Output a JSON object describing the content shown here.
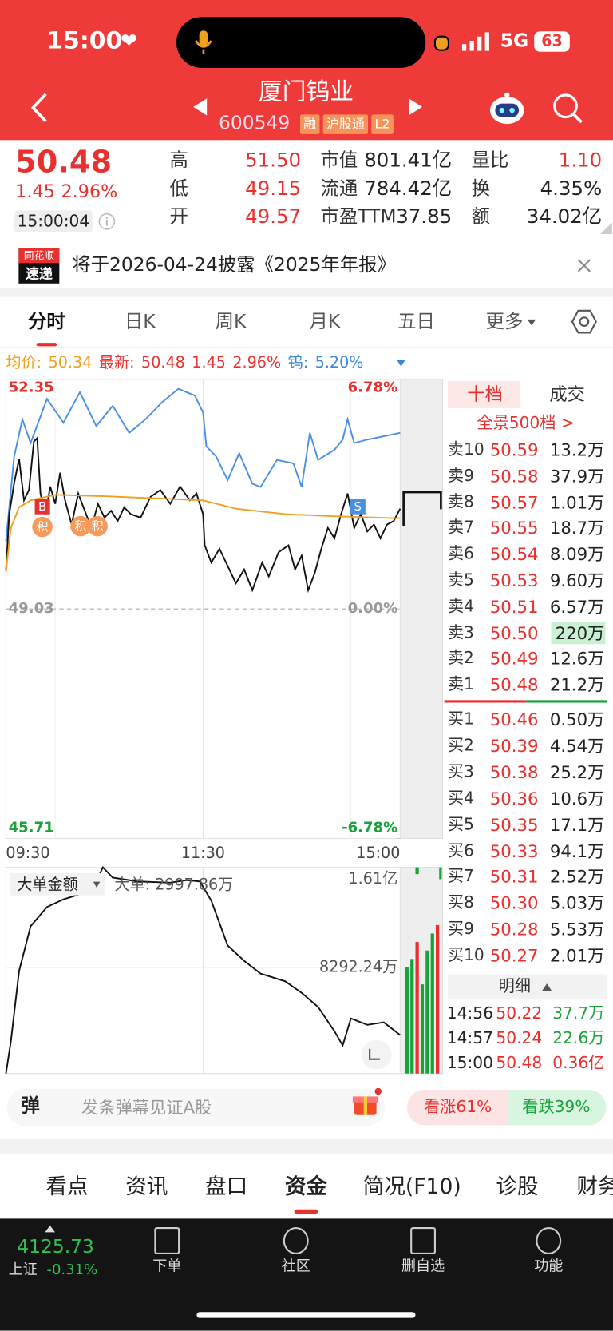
{
  "status_bar": {
    "time": "15:00",
    "network": "5G",
    "battery": "63"
  },
  "header": {
    "title": "厦门钨业",
    "code": "600549",
    "tags": [
      "融",
      "沪股通",
      "L2"
    ]
  },
  "quote": {
    "price": "50.48",
    "change": "1.45",
    "change_pct": "2.96%",
    "time": "15:00:04",
    "stats": [
      {
        "label": "高",
        "value": "51.50"
      },
      {
        "label": "低",
        "value": "49.15"
      },
      {
        "label": "开",
        "value": "49.57"
      },
      {
        "label": "市值",
        "value": "801.41亿"
      },
      {
        "label": "流通",
        "value": "784.42亿"
      },
      {
        "label": "市盈TTM",
        "value": "37.85"
      },
      {
        "label": "量比",
        "value": "1.10"
      },
      {
        "label": "换",
        "value": "4.35%"
      },
      {
        "label": "额",
        "value": "34.02亿"
      }
    ]
  },
  "notice": {
    "logo": [
      "同花顺",
      "速递"
    ],
    "text": "将于2026-04-24披露《2025年年报》"
  },
  "chart_tabs": {
    "items": [
      "分时",
      "日K",
      "周K",
      "月K",
      "五日",
      "更多"
    ],
    "active": 0
  },
  "legend": [
    {
      "label": "均价:",
      "values": [
        "50.34"
      ],
      "color": "#f0a020"
    },
    {
      "label": "最新:",
      "values": [
        "50.48",
        "1.45",
        "2.96%"
      ],
      "color": "#e8312f"
    },
    {
      "label": "钨:",
      "values": [
        "5.20%"
      ],
      "color": "#3b86e0"
    }
  ],
  "chart_data": [
    {
      "type": "line",
      "xlim": [
        0,
        240
      ],
      "xticks": [
        {
          "value": 0,
          "label": "09:30"
        },
        {
          "value": 120,
          "label": "11:30"
        },
        {
          "value": 240,
          "label": "15:00"
        }
      ],
      "ylim": [
        45.71,
        52.35
      ],
      "yticks": [
        52.35,
        49.03,
        45.71
      ],
      "y2lim": [
        -6.78,
        6.78
      ],
      "y2ticks": [
        {
          "value": 6.78,
          "label": "6.78%"
        },
        {
          "value": 0,
          "label": "0.00%"
        },
        {
          "value": -6.78,
          "label": "-6.78%"
        }
      ],
      "grid": true,
      "annotations": [
        "B",
        "积",
        "积",
        "积",
        "S"
      ],
      "series": [
        {
          "color": "#4a90e2",
          "axis": "y2",
          "x": [
            0,
            5,
            10,
            15,
            25,
            35,
            45,
            55,
            65,
            75,
            85,
            95,
            105,
            115,
            120,
            122,
            128,
            135,
            142,
            150,
            155,
            165,
            175,
            180,
            185,
            190,
            200,
            205,
            208,
            212,
            220,
            230,
            240
          ],
          "values": [
            2.0,
            4.5,
            5.6,
            4.9,
            6.2,
            5.5,
            6.4,
            5.4,
            6.0,
            5.2,
            5.6,
            6.1,
            6.5,
            6.3,
            5.8,
            4.8,
            4.5,
            3.8,
            4.6,
            3.7,
            3.6,
            4.4,
            4.3,
            3.6,
            5.2,
            4.4,
            4.7,
            5.0,
            5.6,
            4.9,
            5.0,
            5.1,
            5.2
          ]
        },
        {
          "color": "#111111",
          "x": [
            0,
            2,
            5,
            8,
            11,
            14,
            17,
            19,
            21,
            24,
            27,
            30,
            33,
            36,
            40,
            44,
            48,
            52,
            56,
            60,
            64,
            68,
            72,
            76,
            82,
            88,
            94,
            100,
            106,
            112,
            116,
            120,
            121,
            125,
            130,
            135,
            140,
            145,
            150,
            156,
            160,
            166,
            172,
            176,
            180,
            184,
            188,
            192,
            196,
            200,
            204,
            208,
            212,
            216,
            220,
            224,
            228,
            232,
            236,
            240
          ],
          "values": [
            49.57,
            50.4,
            50.85,
            51.2,
            50.6,
            50.75,
            51.45,
            51.5,
            50.7,
            50.4,
            50.8,
            50.55,
            51.0,
            50.6,
            50.25,
            50.7,
            50.45,
            50.2,
            50.55,
            50.35,
            50.45,
            50.3,
            50.5,
            50.4,
            50.35,
            50.65,
            50.75,
            50.55,
            50.8,
            50.6,
            50.7,
            50.4,
            49.95,
            49.7,
            49.9,
            49.65,
            49.4,
            49.6,
            49.3,
            49.7,
            49.5,
            49.85,
            49.95,
            49.6,
            49.8,
            49.3,
            49.55,
            49.9,
            50.2,
            50.05,
            50.4,
            50.7,
            50.2,
            50.4,
            50.15,
            50.25,
            50.05,
            50.25,
            50.3,
            50.48
          ]
        },
        {
          "color": "#f0a020",
          "x": [
            0,
            3,
            8,
            15,
            30,
            60,
            100,
            120,
            140,
            170,
            200,
            240
          ],
          "values": [
            49.57,
            50.2,
            50.5,
            50.6,
            50.68,
            50.66,
            50.62,
            50.6,
            50.48,
            50.4,
            50.37,
            50.34
          ]
        }
      ]
    },
    {
      "type": "line",
      "title": "大单金额",
      "annotation": "大单: 2997.86万",
      "xlim": [
        0,
        240
      ],
      "ylim": [
        0,
        16100
      ],
      "yticks": [
        {
          "value": 16100,
          "label": "1.61亿"
        },
        {
          "value": 8292.24,
          "label": "8292.24万"
        }
      ],
      "series": [
        {
          "color": "#111111",
          "x": [
            0,
            3,
            8,
            15,
            25,
            35,
            45,
            55,
            59,
            65,
            80,
            100,
            110,
            118,
            125,
            135,
            145,
            155,
            170,
            180,
            190,
            200,
            205,
            210,
            220,
            230,
            240
          ],
          "values": [
            0,
            2500,
            8000,
            11500,
            13000,
            13600,
            14000,
            15000,
            16100,
            15300,
            15000,
            14900,
            15100,
            15000,
            13500,
            10000,
            8800,
            7800,
            7200,
            6300,
            5200,
            3300,
            2200,
            4300,
            3800,
            4000,
            2997.86
          ]
        }
      ]
    }
  ],
  "order_book": {
    "tabs": [
      "十档",
      "成交"
    ],
    "depth_link": "全景500档 >",
    "asks": [
      {
        "level": "卖10",
        "price": "50.59",
        "volume": "13.2万"
      },
      {
        "level": "卖9",
        "price": "50.58",
        "volume": "37.9万"
      },
      {
        "level": "卖8",
        "price": "50.57",
        "volume": "1.01万"
      },
      {
        "level": "卖7",
        "price": "50.55",
        "volume": "18.7万"
      },
      {
        "level": "卖6",
        "price": "50.54",
        "volume": "8.09万"
      },
      {
        "level": "卖5",
        "price": "50.53",
        "volume": "9.60万"
      },
      {
        "level": "卖4",
        "price": "50.51",
        "volume": "6.57万"
      },
      {
        "level": "卖3",
        "price": "50.50",
        "volume": "220万"
      },
      {
        "level": "卖2",
        "price": "50.49",
        "volume": "12.6万"
      },
      {
        "level": "卖1",
        "price": "50.48",
        "volume": "21.2万"
      }
    ],
    "bids": [
      {
        "level": "买1",
        "price": "50.46",
        "volume": "0.50万"
      },
      {
        "level": "买2",
        "price": "50.39",
        "volume": "4.54万"
      },
      {
        "level": "买3",
        "price": "50.38",
        "volume": "25.2万"
      },
      {
        "level": "买4",
        "price": "50.36",
        "volume": "10.6万"
      },
      {
        "level": "买5",
        "price": "50.35",
        "volume": "17.1万"
      },
      {
        "level": "买6",
        "price": "50.33",
        "volume": "94.1万"
      },
      {
        "level": "买7",
        "price": "50.31",
        "volume": "2.52万"
      },
      {
        "level": "买8",
        "price": "50.30",
        "volume": "5.03万"
      },
      {
        "level": "买9",
        "price": "50.28",
        "volume": "5.53万"
      },
      {
        "level": "买10",
        "price": "50.27",
        "volume": "2.01万"
      }
    ],
    "detail_label": "明细",
    "trades": [
      {
        "time": "14:56",
        "price": "50.22",
        "volume": "37.7万",
        "color": "#19a13a"
      },
      {
        "time": "14:57",
        "price": "50.24",
        "volume": "22.6万",
        "color": "#19a13a"
      },
      {
        "time": "15:00",
        "price": "50.48",
        "volume": "0.36亿",
        "color": "#e8312f"
      }
    ]
  },
  "danmu": {
    "icon": "弹",
    "placeholder": "发条弹幕见证A股",
    "bull": "看涨61%",
    "bear": "看跌39%"
  },
  "bottom_tabs": {
    "items": [
      "看点",
      "资讯",
      "盘口",
      "资金",
      "简况(F10)",
      "诊股",
      "财务"
    ],
    "active": 3
  },
  "bottom_nav": {
    "index_value": "4125.73",
    "index_name": "上证",
    "index_change": "-0.31%",
    "items": [
      "下单",
      "社区",
      "删自选",
      "功能"
    ]
  }
}
